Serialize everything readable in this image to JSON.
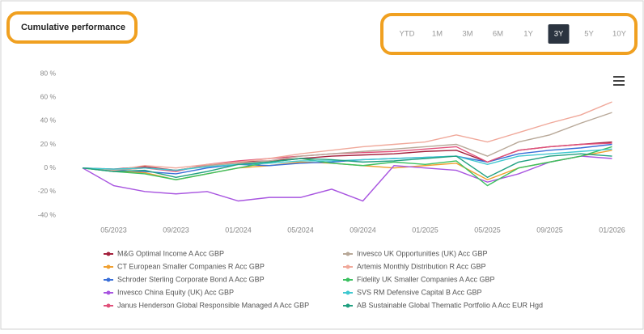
{
  "chart_data": {
    "type": "line",
    "title": "Cumulative performance",
    "ranges": [
      "YTD",
      "1M",
      "3M",
      "6M",
      "1Y",
      "3Y",
      "5Y",
      "10Y"
    ],
    "active_range": 5,
    "x": [
      null,
      "05/2023",
      null,
      "09/2023",
      null,
      "01/2024",
      null,
      "05/2024",
      null,
      "09/2024",
      null,
      "01/2025",
      null,
      "05/2025",
      null,
      "09/2025",
      null,
      "01/2026"
    ],
    "ylim": [
      -40,
      80
    ],
    "yticks": [
      {
        "value": -40,
        "label": "-40 %"
      },
      {
        "value": -20,
        "label": "-20 %"
      },
      {
        "value": 0,
        "label": "0 %"
      },
      {
        "value": 20,
        "label": "20 %"
      },
      {
        "value": 40,
        "label": "40 %"
      },
      {
        "value": 60,
        "label": "60 %"
      },
      {
        "value": 80,
        "label": "80 %"
      }
    ],
    "grid": false,
    "series": [
      {
        "name": "M&G Optimal Income A Acc GBP",
        "color": "#a3203c",
        "values": [
          0,
          -1,
          1,
          -2,
          2,
          5,
          6,
          8,
          10,
          11,
          12,
          14,
          15,
          5,
          15,
          18,
          20,
          22
        ]
      },
      {
        "name": "CT European Smaller Companies R Acc GBP",
        "color": "#f0a030",
        "values": [
          0,
          -3,
          -4,
          -10,
          -5,
          0,
          2,
          5,
          4,
          2,
          0,
          2,
          4,
          -10,
          0,
          5,
          10,
          15
        ]
      },
      {
        "name": "Schroder Sterling Corporate Bond A Acc GBP",
        "color": "#3a6fd8",
        "values": [
          0,
          -2,
          -3,
          -5,
          0,
          3,
          2,
          4,
          5,
          7,
          8,
          9,
          10,
          5,
          12,
          15,
          17,
          20
        ]
      },
      {
        "name": "Invesco China Equity (UK) Acc GBP",
        "color": "#a855e0",
        "values": [
          0,
          -15,
          -20,
          -22,
          -20,
          -28,
          -25,
          -25,
          -18,
          -28,
          2,
          0,
          -2,
          -12,
          -5,
          5,
          10,
          8
        ]
      },
      {
        "name": "Janus Henderson Global Responsible Managed A Acc GBP",
        "color": "#e0507a",
        "values": [
          0,
          -2,
          0,
          -3,
          3,
          6,
          8,
          10,
          12,
          13,
          14,
          16,
          18,
          5,
          15,
          18,
          20,
          21
        ]
      },
      {
        "name": "Invesco UK Opportunities (UK) Acc GBP",
        "color": "#b8a898",
        "values": [
          0,
          -2,
          0,
          -2,
          2,
          4,
          6,
          10,
          12,
          14,
          16,
          18,
          20,
          10,
          22,
          28,
          38,
          47
        ]
      },
      {
        "name": "Artemis Monthly Distribution R Acc GBP",
        "color": "#f0a89a",
        "values": [
          0,
          -2,
          2,
          0,
          3,
          5,
          8,
          12,
          15,
          18,
          20,
          22,
          28,
          22,
          30,
          38,
          45,
          56
        ]
      },
      {
        "name": "Fidelity UK Smaller Companies A Acc GBP",
        "color": "#3cc060",
        "values": [
          0,
          -3,
          -5,
          -10,
          -5,
          0,
          5,
          8,
          4,
          2,
          5,
          3,
          6,
          -15,
          0,
          5,
          10,
          18
        ]
      },
      {
        "name": "SVS RM Defensive Capital B Acc GBP",
        "color": "#40c8d0",
        "values": [
          0,
          -1,
          0,
          -2,
          1,
          3,
          4,
          6,
          6,
          7,
          8,
          9,
          10,
          3,
          10,
          12,
          14,
          16
        ]
      },
      {
        "name": "AB Sustainable Global Thematic Portfolio A Acc EUR Hgd",
        "color": "#20a080",
        "values": [
          0,
          -3,
          -2,
          -8,
          -3,
          3,
          5,
          8,
          7,
          5,
          6,
          8,
          10,
          -8,
          5,
          10,
          12,
          10
        ]
      }
    ]
  }
}
